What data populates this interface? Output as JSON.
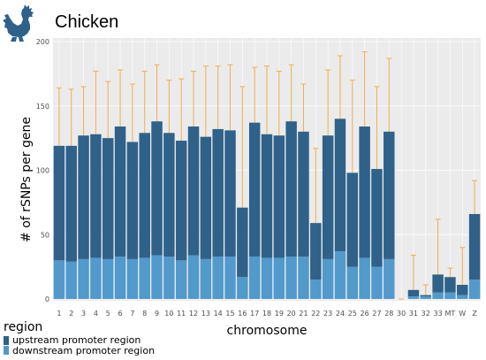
{
  "header": {
    "title": "Chicken",
    "logo_icon": "rooster-icon"
  },
  "colors": {
    "upstream": "#2f6189",
    "downstream": "#5299cc",
    "error_bar": "#f0ad4e",
    "panel_bg": "#ebebeb",
    "grid": "#ffffff",
    "text": "#000000",
    "tick_text": "#4d4d4d",
    "logo": "#2f6189"
  },
  "chart_data": {
    "type": "bar",
    "stacked": true,
    "title": "",
    "xlabel": "chromosome",
    "ylabel": "# of rSNPs per gene",
    "ylim": [
      0,
      200
    ],
    "yticks": [
      0,
      50,
      100,
      150,
      200
    ],
    "grid": true,
    "legend": {
      "title": "region",
      "placement": "bottom-left",
      "entries": [
        "upstream promoter region",
        "downstream promoter region"
      ]
    },
    "categories": [
      "1",
      "2",
      "3",
      "4",
      "5",
      "6",
      "7",
      "8",
      "9",
      "10",
      "11",
      "12",
      "13",
      "14",
      "15",
      "16",
      "17",
      "18",
      "19",
      "20",
      "21",
      "22",
      "23",
      "24",
      "25",
      "26",
      "27",
      "28",
      "30",
      "31",
      "32",
      "33",
      "MT",
      "W",
      "Z"
    ],
    "series": [
      {
        "name": "downstream promoter region",
        "values": [
          30,
          29,
          31,
          32,
          31,
          33,
          31,
          32,
          34,
          33,
          30,
          34,
          31,
          33,
          33,
          17,
          33,
          32,
          32,
          33,
          33,
          15,
          31,
          37,
          25,
          32,
          25,
          31,
          0,
          2,
          2,
          5,
          5,
          3,
          15
        ]
      },
      {
        "name": "upstream promoter region",
        "values": [
          89,
          90,
          96,
          96,
          94,
          101,
          91,
          97,
          104,
          96,
          93,
          100,
          95,
          99,
          98,
          54,
          104,
          96,
          95,
          105,
          97,
          44,
          96,
          103,
          73,
          102,
          76,
          99,
          0,
          5,
          1,
          14,
          12,
          8,
          51
        ]
      }
    ],
    "totals": [
      119,
      119,
      127,
      128,
      125,
      134,
      122,
      129,
      138,
      129,
      123,
      134,
      126,
      132,
      131,
      71,
      137,
      128,
      127,
      138,
      130,
      59,
      127,
      140,
      98,
      134,
      101,
      130,
      0,
      7,
      3,
      19,
      17,
      11,
      66
    ],
    "error_upper": [
      164,
      163,
      165,
      177,
      169,
      178,
      167,
      177,
      182,
      170,
      171,
      177,
      181,
      181,
      182,
      165,
      180,
      181,
      177,
      182,
      167,
      117,
      178,
      189,
      170,
      192,
      165,
      187,
      0,
      34,
      11,
      62,
      24,
      40,
      92
    ]
  }
}
